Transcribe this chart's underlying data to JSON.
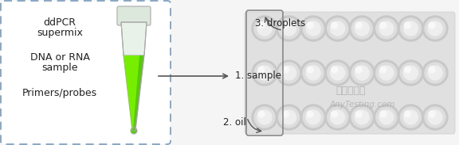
{
  "bg_color": "#f5f5f5",
  "white": "#ffffff",
  "box_border_color": "#7799bb",
  "text_color": "#222222",
  "green_bright": "#77ee00",
  "green_mid": "#55cc00",
  "tube_white": "#f0f4f0",
  "tube_gray": "#cccccc",
  "plate_bg": "#e0e0e0",
  "plate_edge": "#cccccc",
  "well_outer": "#c8c8c8",
  "well_mid": "#dedede",
  "well_inner": "#eeeeee",
  "well_highlight": "#f8f8f8",
  "label1": "1. sample",
  "label2": "2. oil",
  "label3": "3. droplets",
  "watermark1": "嘉岚检测网",
  "watermark2": "AnyTesting.com",
  "fig_width": 5.76,
  "fig_height": 1.83,
  "dpi": 100
}
